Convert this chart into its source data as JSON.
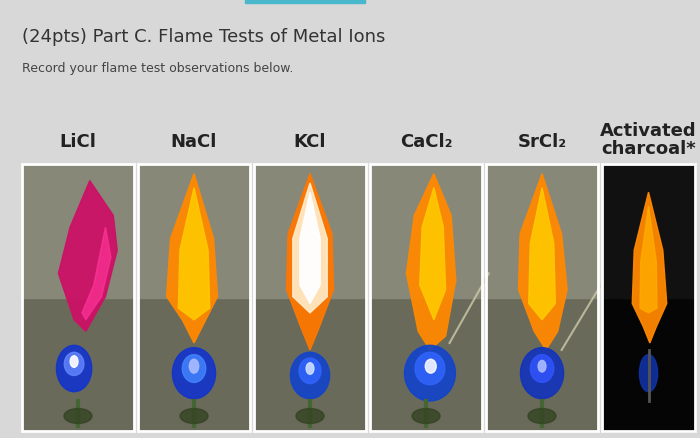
{
  "title": "(24pts) Part C. Flame Tests of Metal Ions",
  "subtitle": "Record your flame test observations below.",
  "bg_color": "#d8d8d8",
  "title_color": "#333333",
  "subtitle_color": "#444444",
  "top_bar_color": "#4ab8cc",
  "labels": [
    "LiCl",
    "NaCl",
    "KCl",
    "CaCl₂",
    "SrCl₂",
    "Activated\ncharcoal*"
  ],
  "img_bg_colors": [
    "#6a6a5a",
    "#6a6a5a",
    "#6a6a5a",
    "#6a6a5a",
    "#6a6a5a",
    "#050505"
  ],
  "img_bg_top_colors": [
    "#888878",
    "#888878",
    "#888878",
    "#888878",
    "#888878",
    "#111111"
  ],
  "flame_data": [
    {
      "outer": "#cc0055",
      "inner": "#ff2288",
      "base_blue": "#1133cc",
      "base_inner": "#4466ff",
      "style": "licl"
    },
    {
      "outer": "#ff8800",
      "inner": "#ffcc00",
      "base_blue": "#1133cc",
      "base_inner": "#4488ff",
      "style": "nacl"
    },
    {
      "outer": "#ff7700",
      "inner": "#ffffff",
      "base_blue": "#1144cc",
      "base_inner": "#3366ff",
      "style": "kcl"
    },
    {
      "outer": "#ff8800",
      "inner": "#ffcc00",
      "base_blue": "#1144cc",
      "base_inner": "#3366ff",
      "style": "cacl2"
    },
    {
      "outer": "#ff8800",
      "inner": "#ffcc00",
      "base_blue": "#1133bb",
      "base_inner": "#3355ff",
      "style": "srcl2"
    },
    {
      "outer": "#ff8800",
      "inner": "#ffaa00",
      "base_blue": "#1133aa",
      "base_inner": "#2244dd",
      "style": "activated"
    }
  ],
  "n_images": 6,
  "label_fontsize": 13,
  "title_fontsize": 13,
  "subtitle_fontsize": 9
}
